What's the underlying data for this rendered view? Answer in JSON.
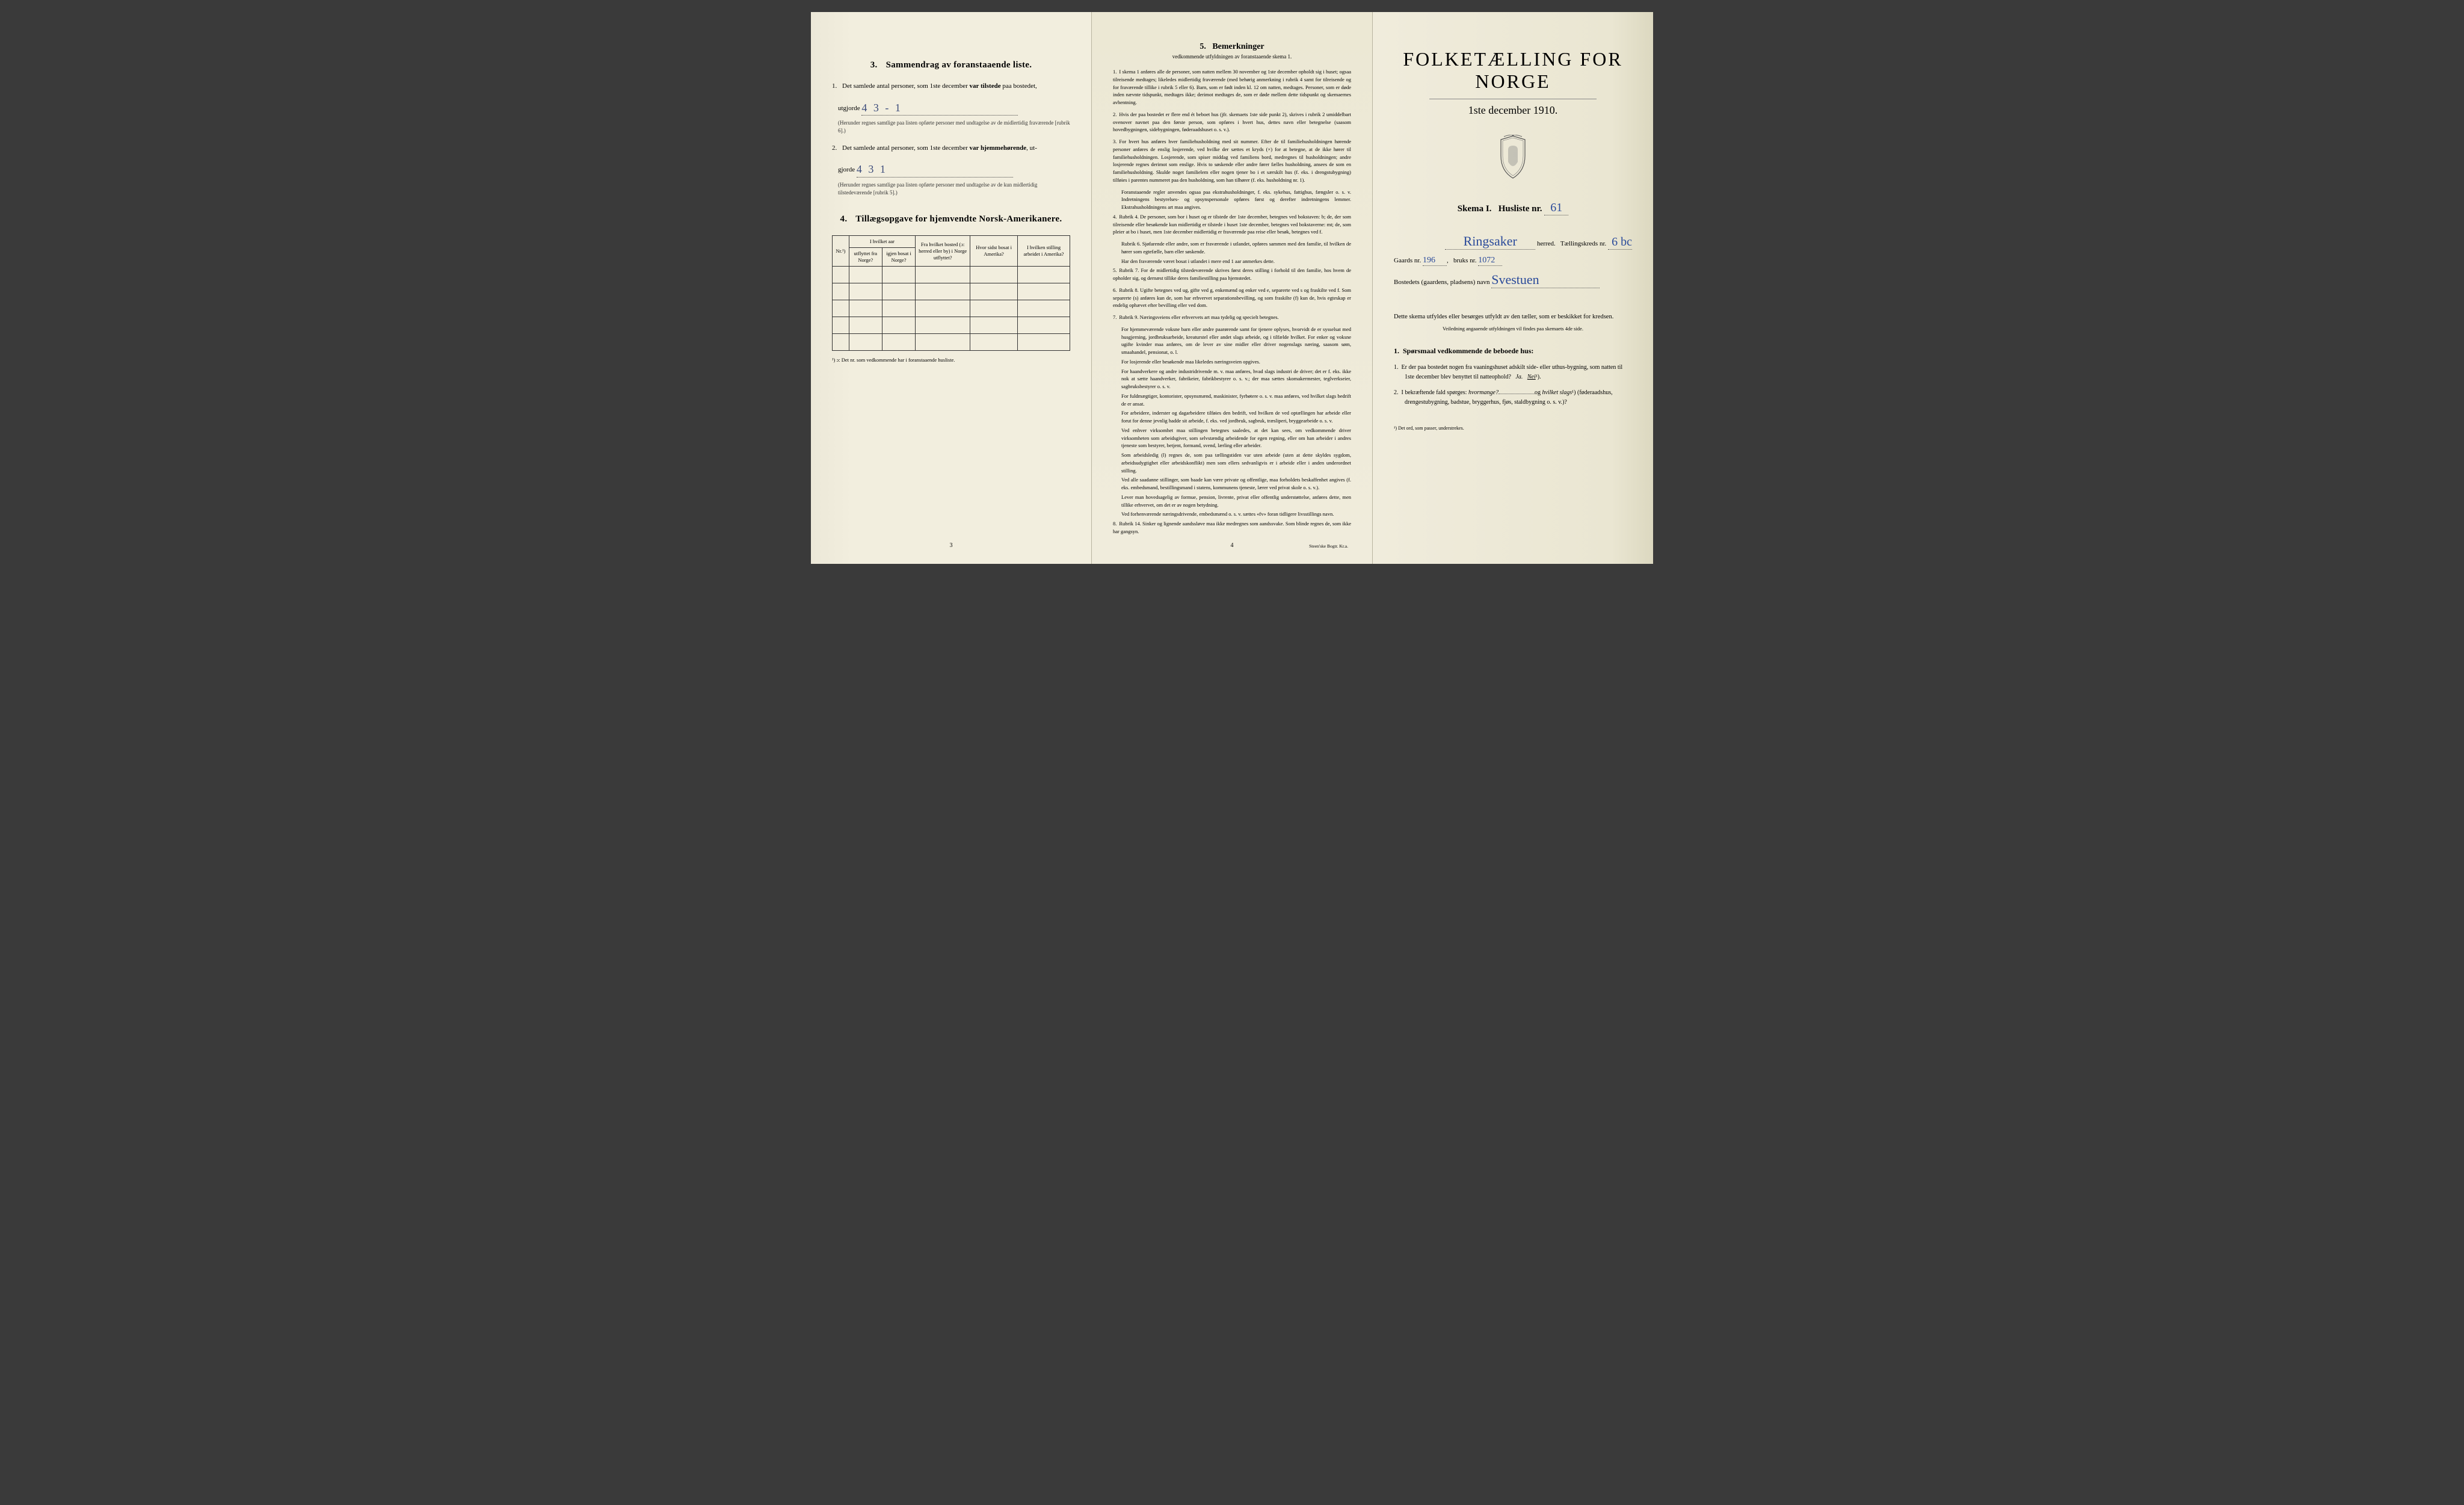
{
  "colors": {
    "paper": "#f0ecdc",
    "paper_shadow": "#e0dcc8",
    "ink": "#1a1a1a",
    "handwriting": "#2a4a9a",
    "border": "#333333"
  },
  "typography": {
    "body_font": "Times New Roman",
    "handwriting_font": "Brush Script MT",
    "main_title_size_pt": 32,
    "section_title_size_pt": 15,
    "body_size_pt": 11,
    "small_size_pt": 9,
    "remark_size_pt": 8.5
  },
  "panel1": {
    "section3": {
      "number": "3.",
      "title": "Sammendrag av foranstaaende liste.",
      "item1": {
        "num": "1.",
        "text_a": "Det samlede antal personer, som 1ste december ",
        "bold_a": "var tilstede",
        "text_b": " paa bostedet,",
        "text_c": "utgjorde",
        "handwritten": "4 3 - 1",
        "note": "(Herunder regnes samtlige paa listen opførte personer med undtagelse av de midlertidig fraværende [rubrik 6].)"
      },
      "item2": {
        "num": "2.",
        "text_a": "Det samlede antal personer, som 1ste december ",
        "bold_a": "var hjemmehørende",
        "text_b": ", ut-",
        "text_c": "gjorde",
        "handwritten": "4  3  1",
        "note": "(Herunder regnes samtlige paa listen opførte personer med undtagelse av de kun midlertidig tilstedeværende [rubrik 5].)"
      }
    },
    "section4": {
      "number": "4.",
      "title": "Tillægsopgave for hjemvendte Norsk-Amerikanere.",
      "table": {
        "col_nr": "Nr.¹)",
        "col_aar_header": "I hvilket aar",
        "col_utflyttet": "utflyttet fra Norge?",
        "col_igjen": "igjen bosat i Norge?",
        "col_bosted": "Fra hvilket bosted (ɔ: herred eller by) i Norge utflyttet?",
        "col_sidst": "Hvor sidst bosat i Amerika?",
        "col_stilling": "I hvilken stilling arbeidet i Amerika?",
        "empty_rows": 5
      },
      "footnote": "¹) ɔ: Det nr. som vedkommende har i foranstaaende husliste."
    },
    "page_num": "3"
  },
  "panel2": {
    "number": "5.",
    "title": "Bemerkninger",
    "subtitle": "vedkommende utfyldningen av foranstaaende skema 1.",
    "remarks": [
      {
        "n": "1.",
        "text": "I skema 1 anføres alle de personer, som natten mellem 30 november og 1ste december opholdt sig i huset; ogsaa tilreisende medtages; likeledes midlertidig fraværende (med behørig anmerkning i rubrik 4 samt for tilreisende og for fraværende tillike i rubrik 5 eller 6). Barn, som er født inden kl. 12 om natten, medtages. Personer, som er døde inden nævnte tidspunkt, medtages ikke; derimot medtages de, som er døde mellem dette tidspunkt og skemaernes avhentning."
      },
      {
        "n": "2.",
        "text": "Hvis der paa bostedet er flere end ét beboet hus (jfr. skemaets 1ste side punkt 2), skrives i rubrik 2 umiddelbart ovenover navnet paa den første person, som opføres i hvert hus, dettes navn eller betegnelse (saasom hovedbygningen, sidebygningen, føderaadshuset o. s. v.)."
      },
      {
        "n": "3.",
        "text": "For hvert hus anføres hver familiehusholdning med sit nummer. Efter de til familiehusholdningen hørende personer anføres de enslig losjerende, ved hvilke der sættes et kryds (×) for at betegne, at de ikke hører til familiehusholdningen. Losjerende, som spiser middag ved familiens bord, medregnes til husholdningen; andre losjerende regnes derimot som enslige. Hvis to søskende eller andre fører fælles husholdning, ansees de som en familiehusholdning. Skulde noget familielem eller nogen tjener bo i et særskilt hus (f. eks. i drengstubygning) tilføies i parentes nummeret paa den husholdning, som han tilhører (f. eks. husholdning nr. 1).",
        "sub": [
          "Foranstaaende regler anvendes ogsaa paa ekstrahusholdninger, f. eks. sykehus, fattighus, fængsler o. s. v. Indretningens bestyrelses- og opsynspersonale opføres først og derefter indretningens lemmer. Ekstrahusholdningens art maa angives."
        ]
      },
      {
        "n": "4.",
        "text": "Rubrik 4. De personer, som bor i huset og er tilstede der 1ste december, betegnes ved bokstaven: b; de, der som tilreisende eller besøkende kun midlertidig er tilstede i huset 1ste december, betegnes ved bokstaverne: mt; de, som pleier at bo i huset, men 1ste december midlertidig er fraværende paa reise eller besøk, betegnes ved f.",
        "sub": [
          "Rubrik 6. Sjøfarende eller andre, som er fraværende i utlandet, opføres sammen med den familie, til hvilken de hører som egtefælle, barn eller søskende.",
          "Har den fraværende været bosat i utlandet i mere end 1 aar anmerkes dette."
        ]
      },
      {
        "n": "5.",
        "text": "Rubrik 7. For de midlertidig tilstedeværende skrives først deres stilling i forhold til den familie, hos hvem de opholder sig, og dernæst tillike deres familiestilling paa hjemstedet."
      },
      {
        "n": "6.",
        "text": "Rubrik 8. Ugifte betegnes ved ug, gifte ved g, enkemænd og enker ved e, separerte ved s og fraskilte ved f. Som separerte (s) anføres kun de, som har erhvervet separationsbevilling, og som fraskilte (f) kun de, hvis egteskap er endelig ophævet efter bevilling eller ved dom."
      },
      {
        "n": "7.",
        "text": "Rubrik 9. Næringsveiens eller erhvervets art maa tydelig og specielt betegnes.",
        "sub": [
          "For hjemmeværende voksne barn eller andre paarørende samt for tjenere oplyses, hvorvidt de er sysselsat med husgjerning, jordbruksarbeide, kreaturstel eller andet slags arbeide, og i tilfælde hvilket. For enker og voksne ugifte kvinder maa anføres, om de lever av sine midler eller driver nogenslags næring, saasom søm, smaahandel, pensionat, o. l.",
          "For losjerende eller besøkende maa likeledes næringsveien opgives.",
          "For haandverkere og andre industridrivende m. v. maa anføres, hvad slags industri de driver; det er f. eks. ikke nok at sætte haandverker, fabrikeier, fabrikbestyrer o. s. v.; der maa sættes skomaker­mester, teglverkseier, sagbruksbestyrer o. s. v.",
          "For fuldmægtiger, kontorister, opsynsmænd, maskinister, fyrbøtere o. s. v. maa anføres, ved hvilket slags bedrift de er ansat.",
          "For arbeidere, inderster og dagarbeidere tilføies den bedrift, ved hvilken de ved optællingen har arbeide eller forut for denne jevnlig hadde sit arbeide, f. eks. ved jordbruk, sagbruk, træsliperi, bryggearbeide o. s. v.",
          "Ved enhver virksomhet maa stillingen betegnes saaledes, at det kan sees, om vedkommende driver virksomheten som arbeidsgiver, som selvstændig arbeidende for egen regning, eller om han arbeider i andres tjeneste som bestyrer, betjent, formand, svend, lærling eller arbeider.",
          "Som arbeidsledig (l) regnes de, som paa tællingstiden var uten arbeide (uten at dette skyldes sygdom, arbeidsudygtighet eller arbeidskonflikt) men som ellers sedvanligvis er i arbeide eller i anden underordnet stilling.",
          "Ved alle saadanne stillinger, som baade kan være private og offentlige, maa forholdets beskaffenhet angives (f. eks. embedsmand, bestillingsmand i statens, kommunens tjeneste, lærer ved privat skole o. s. v.).",
          "Lever man hovedsagelig av formue, pension, livrente, privat eller offentlig understøttelse, anføres dette, men tillike erhvervet, om det er av nogen betydning.",
          "Ved forhenværende næringsdrivende, embedsmænd o. s. v. sættes «fv» foran tidligere livsstillings navn."
        ]
      },
      {
        "n": "8.",
        "text": "Rubrik 14. Sinker og lignende aandssløve maa ikke medregnes som aandssvake. Som blinde regnes de, som ikke har gangsyn."
      }
    ],
    "page_num": "4",
    "printer": "Steen'ske Bogtr. Kr.a."
  },
  "panel3": {
    "main_title": "FOLKETÆLLING FOR NORGE",
    "date": "1ste december 1910.",
    "skema_label_a": "Skema I.",
    "skema_label_b": "Husliste nr.",
    "husliste_nr": "61",
    "herred_hw": "Ringsaker",
    "herred_label": "herred.",
    "kreds_label": "Tællingskreds nr.",
    "kreds_nr": "6 bc",
    "gaards_label": "Gaards nr.",
    "gaards_nr": "196",
    "bruks_label": "bruks nr.",
    "bruks_nr": "1072",
    "bosted_label": "Bostedets (gaardens, pladsens) navn",
    "bosted_hw": "Svestuen",
    "instruction": "Dette skema utfyldes eller besørges utfyldt av den tæller, som er beskikket for kredsen.",
    "instruction_small": "Veiledning angaaende utfyldningen vil findes paa skemaets 4de side.",
    "q_heading_num": "1.",
    "q_heading": "Spørsmaal vedkommende de beboede hus:",
    "q1": {
      "num": "1.",
      "text": "Er der paa bostedet nogen fra vaaningshuset adskilt side- eller uthus-bygning, som natten til 1ste december blev benyttet til natteophold?",
      "ja": "Ja.",
      "nei": "Nei",
      "sup": "¹)."
    },
    "q2": {
      "num": "2.",
      "text_a": "I bekræftende fald spørges: ",
      "italic_a": "hvormange?",
      "text_b": "og ",
      "italic_b": "hvilket slags",
      "sup": "¹)",
      "text_c": "(føderaadshus, drengestubygning, badstue, bryggerhus, fjøs, staldbygning o. s. v.)?"
    },
    "footnote": "¹) Det ord, som passer, understrekes."
  }
}
